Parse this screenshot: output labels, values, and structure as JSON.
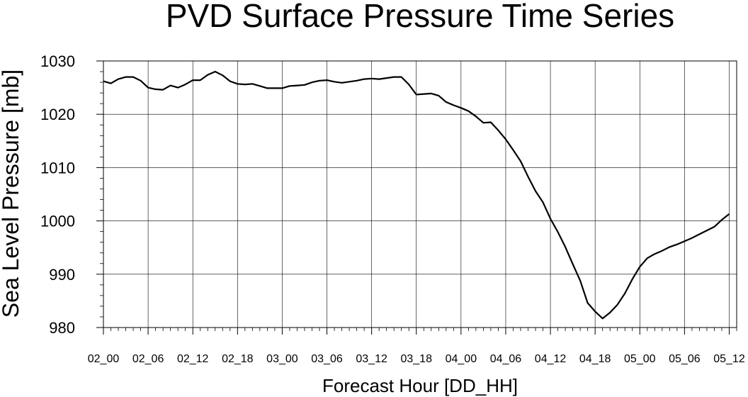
{
  "chart_data": {
    "type": "line",
    "title": "PVD Surface Pressure Time Series",
    "xlabel": "Forecast Hour [DD_HH]",
    "ylabel": "Sea Level Pressure [mb]",
    "xlim": [
      0,
      85
    ],
    "ylim": [
      980,
      1030
    ],
    "grid": true,
    "x_ticks": [
      0,
      6,
      12,
      18,
      24,
      30,
      36,
      42,
      48,
      54,
      60,
      66,
      72,
      78,
      84
    ],
    "x_tick_labels": [
      "02_00",
      "02_06",
      "02_12",
      "02_18",
      "03_00",
      "03_06",
      "03_12",
      "03_18",
      "04_00",
      "04_06",
      "04_12",
      "04_18",
      "05_00",
      "05_06",
      "05_12"
    ],
    "y_ticks": [
      980,
      990,
      1000,
      1010,
      1020,
      1030
    ],
    "y_tick_labels": [
      "980",
      "990",
      "1000",
      "1010",
      "1020",
      "1030"
    ],
    "series": [
      {
        "color": "#000000",
        "x": [
          0,
          1,
          2,
          3,
          4,
          5,
          6,
          7,
          8,
          9,
          10,
          11,
          12,
          13,
          14,
          15,
          16,
          17,
          18,
          19,
          20,
          21,
          22,
          23,
          24,
          25,
          26,
          27,
          28,
          29,
          30,
          31,
          32,
          33,
          34,
          35,
          36,
          37,
          38,
          39,
          40,
          41,
          42,
          43,
          44,
          45,
          46,
          47,
          48,
          49,
          50,
          51,
          52,
          53,
          54,
          55,
          56,
          57,
          58,
          59,
          60,
          61,
          62,
          63,
          64,
          65,
          66,
          67,
          68,
          69,
          70,
          71,
          72,
          73,
          74,
          75,
          76,
          77,
          78,
          79,
          80,
          81,
          82,
          83,
          84
        ],
        "y": [
          1026.2,
          1025.8,
          1026.6,
          1027.0,
          1027.0,
          1026.3,
          1025.0,
          1024.7,
          1024.6,
          1025.4,
          1025.0,
          1025.6,
          1026.4,
          1026.4,
          1027.4,
          1028.0,
          1027.3,
          1026.2,
          1025.7,
          1025.6,
          1025.7,
          1025.3,
          1024.9,
          1024.9,
          1024.9,
          1025.3,
          1025.4,
          1025.5,
          1026.0,
          1026.3,
          1026.4,
          1026.1,
          1025.9,
          1026.1,
          1026.3,
          1026.6,
          1026.7,
          1026.6,
          1026.8,
          1027.0,
          1027.0,
          1025.6,
          1023.7,
          1023.8,
          1023.9,
          1023.5,
          1022.3,
          1021.7,
          1021.2,
          1020.6,
          1019.6,
          1018.4,
          1018.5,
          1017.0,
          1015.3,
          1013.3,
          1011.2,
          1008.3,
          1005.6,
          1003.5,
          1000.4,
          997.9,
          995.1,
          991.9,
          988.8,
          984.6,
          983.0,
          981.7,
          982.8,
          984.3,
          986.4,
          989.1,
          991.4,
          993.0,
          993.8,
          994.4,
          995.1,
          995.6,
          996.2,
          996.8,
          997.5,
          998.2,
          998.9,
          1000.2,
          1001.3
        ]
      }
    ]
  }
}
